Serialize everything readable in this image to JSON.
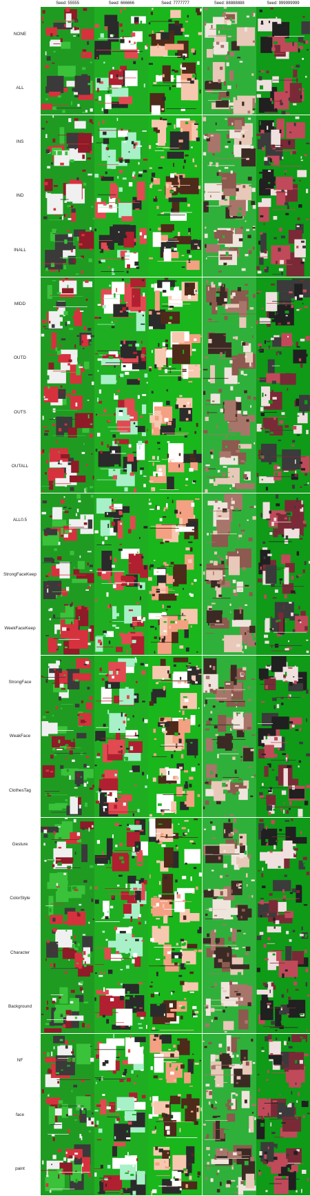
{
  "columns": [
    {
      "label": "Seed: 55555",
      "palette": {
        "bg": "#1f9b22",
        "a": "#d6323e",
        "b": "#8e1b27",
        "c": "#f0f0f0",
        "d": "#3a3a3a",
        "e": "#39c23a"
      }
    },
    {
      "label": "Seed: 666666",
      "palette": {
        "bg": "#1fae21",
        "a": "#e24a52",
        "b": "#ffffff",
        "c": "#2a2a2a",
        "d": "#b02030",
        "e": "#a7f0c8"
      }
    },
    {
      "label": "Seed: 7777777",
      "palette": {
        "bg": "#19b61c",
        "a": "#f7c8b0",
        "b": "#2b2b2b",
        "c": "#f4a082",
        "d": "#ffffff",
        "e": "#4e2a1a"
      }
    },
    {
      "label": "Seed: 88888888",
      "palette": {
        "bg": "#2fb03a",
        "a": "#a8756a",
        "b": "#efe5dd",
        "c": "#8c5a4e",
        "d": "#e8c8b8",
        "e": "#3b2a24"
      }
    },
    {
      "label": "Seed: 999999999",
      "palette": {
        "bg": "#0f9a18",
        "a": "#3b3b3b",
        "b": "#c04a5a",
        "c": "#f0e0e0",
        "d": "#202020",
        "e": "#7a2a36"
      }
    }
  ],
  "rows": [
    "NONE",
    "ALL",
    "INS",
    "IND",
    "INALL",
    "MIDD",
    "OUTD",
    "OUTS",
    "OUTALL",
    "ALL0.5",
    "StrongFaceKeep",
    "WeekFaceKeep",
    "StrongFace",
    "WeakFace",
    "ClothesTag",
    "Gesture",
    "ColorStyle",
    "Character",
    "Background",
    "NF",
    "face",
    "paint"
  ]
}
